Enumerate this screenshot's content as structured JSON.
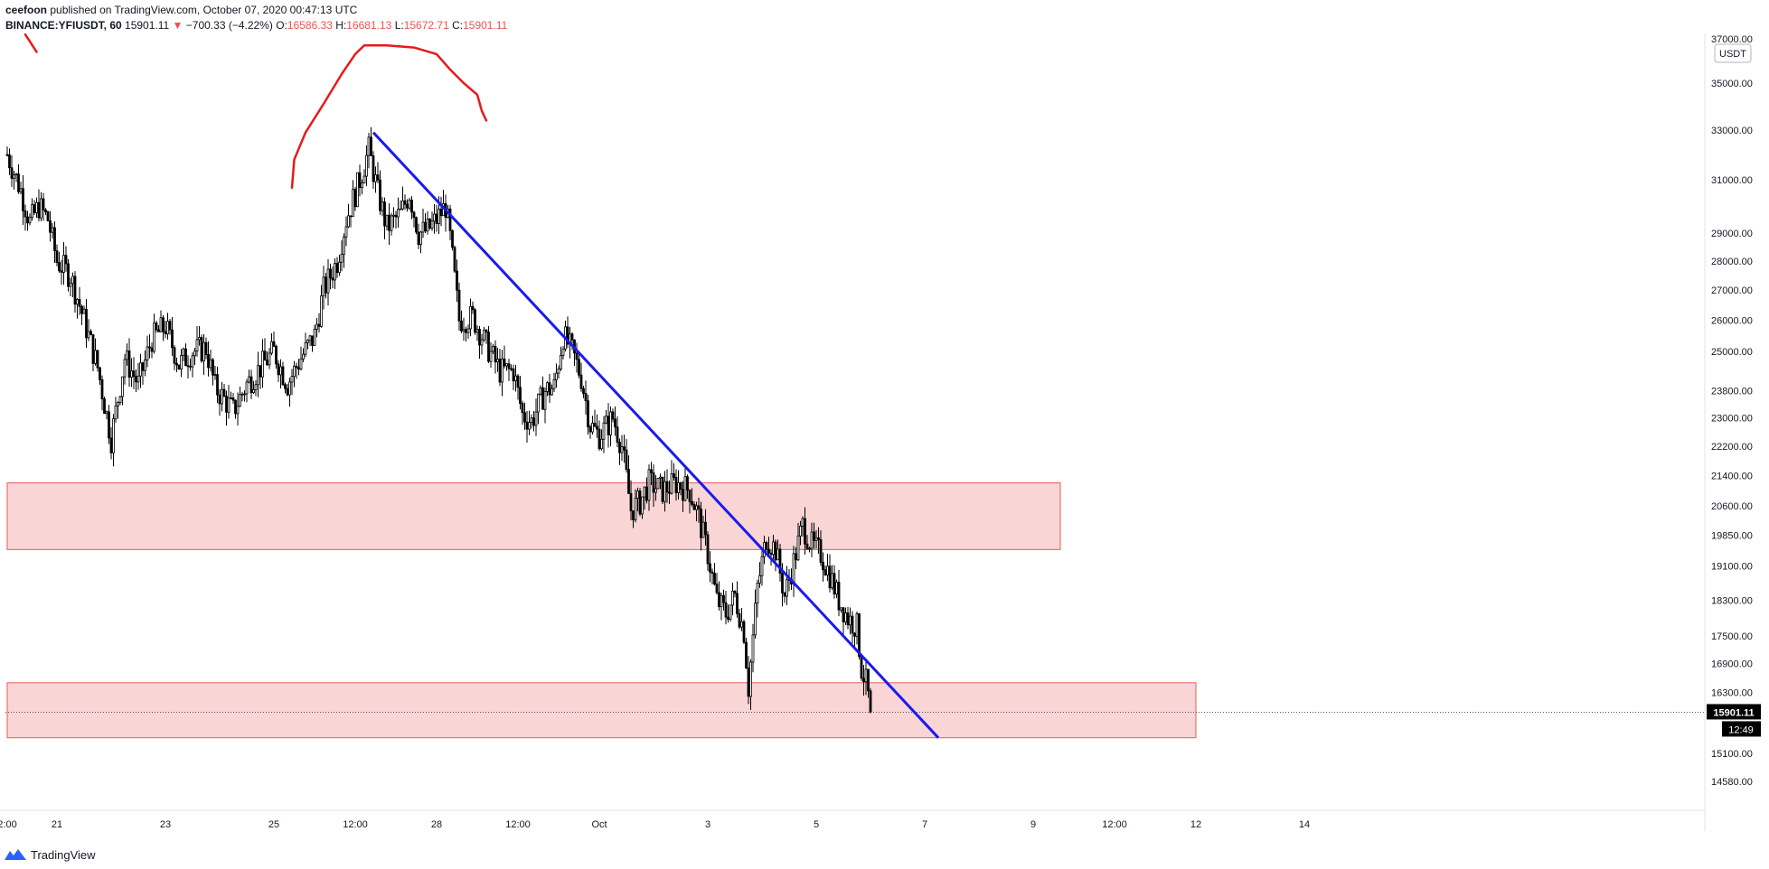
{
  "header": {
    "author": "ceefoon",
    "published_text": "published on TradingView.com, October 07, 2020 00:47:13 UTC",
    "symbol": "BINANCE:YFIUSDT, 60",
    "last": "15901.11",
    "change": "−700.33 (−4.22%)",
    "open_label": "O:",
    "open": "16586.33",
    "high_label": "H:",
    "high": "16681.13",
    "low_label": "L:",
    "low": "15672.71",
    "close_label": "C:",
    "close": "15901.11"
  },
  "footer": {
    "brand": "TradingView"
  },
  "colors": {
    "up": "#ffffff",
    "down": "#000000",
    "trendline": "#1a1aee",
    "drawing": "#e8191a",
    "zone_fill": "#f9d5d5",
    "zone_border": "#e85a5a",
    "accent_red": "#ef5350"
  },
  "chart_data": {
    "type": "candlestick",
    "title": "BINANCE:YFIUSDT, 60",
    "currency": "USDT",
    "ylim": [
      14000,
      37600
    ],
    "y_ticks": [
      14580,
      15100,
      16300,
      16900,
      17500,
      18300,
      19100,
      19850,
      20600,
      21400,
      22200,
      23000,
      23800,
      25000,
      26000,
      27000,
      28000,
      29000,
      31000,
      33000,
      35000,
      37000
    ],
    "y_tick_labels": [
      "14580.00",
      "15100.00",
      "16300.00",
      "16900.00",
      "17500.00",
      "18300.00",
      "19100.00",
      "19850.00",
      "20600.00",
      "21400.00",
      "22200.00",
      "23000.00",
      "23800.00",
      "25000.00",
      "26000.00",
      "27000.00",
      "28000.00",
      "29000.00",
      "31000.00",
      "33000.00",
      "35000.00",
      "37000.00"
    ],
    "x_range_hours": [
      0,
      390
    ],
    "x_ticks": [
      {
        "label": "2:00",
        "hour": 0
      },
      {
        "label": "21",
        "hour": 22
      },
      {
        "label": "23",
        "hour": 70
      },
      {
        "label": "25",
        "hour": 118
      },
      {
        "label": "12:00",
        "hour": 154
      },
      {
        "label": "28",
        "hour": 190
      },
      {
        "label": "12:00",
        "hour": 226
      },
      {
        "label": "Oct",
        "hour": 262
      },
      {
        "label": "3",
        "hour": 310
      },
      {
        "label": "5",
        "hour": 358
      },
      {
        "label": "7",
        "hour": 406
      },
      {
        "label": "9",
        "hour": 454
      },
      {
        "label": "12:00",
        "hour": 490
      },
      {
        "label": "12",
        "hour": 526
      },
      {
        "label": "14",
        "hour": 574
      }
    ],
    "x_hours_total": 600,
    "anchors": [
      [
        0,
        32000
      ],
      [
        6,
        30600
      ],
      [
        10,
        29400
      ],
      [
        14,
        30000
      ],
      [
        18,
        29500
      ],
      [
        22,
        28000
      ],
      [
        28,
        27500
      ],
      [
        34,
        26000
      ],
      [
        40,
        24500
      ],
      [
        46,
        22400
      ],
      [
        52,
        24800
      ],
      [
        58,
        24000
      ],
      [
        64,
        25400
      ],
      [
        70,
        25800
      ],
      [
        76,
        24600
      ],
      [
        82,
        25000
      ],
      [
        88,
        25100
      ],
      [
        92,
        23900
      ],
      [
        100,
        23200
      ],
      [
        106,
        24000
      ],
      [
        112,
        24500
      ],
      [
        118,
        25000
      ],
      [
        124,
        24000
      ],
      [
        130,
        24800
      ],
      [
        136,
        25500
      ],
      [
        140,
        27000
      ],
      [
        146,
        28000
      ],
      [
        150,
        29500
      ],
      [
        156,
        31000
      ],
      [
        160,
        32200
      ],
      [
        164,
        30500
      ],
      [
        168,
        29200
      ],
      [
        174,
        29700
      ],
      [
        178,
        30500
      ],
      [
        182,
        29000
      ],
      [
        186,
        29100
      ],
      [
        190,
        29500
      ],
      [
        194,
        30000
      ],
      [
        196,
        28800
      ],
      [
        200,
        26000
      ],
      [
        206,
        26100
      ],
      [
        212,
        25200
      ],
      [
        218,
        24400
      ],
      [
        224,
        24400
      ],
      [
        228,
        23100
      ],
      [
        232,
        22900
      ],
      [
        238,
        23800
      ],
      [
        242,
        23900
      ],
      [
        246,
        25500
      ],
      [
        250,
        25000
      ],
      [
        254,
        24200
      ],
      [
        258,
        22800
      ],
      [
        262,
        22500
      ],
      [
        268,
        23000
      ],
      [
        272,
        22200
      ],
      [
        276,
        20500
      ],
      [
        280,
        20700
      ],
      [
        284,
        21200
      ],
      [
        290,
        21000
      ],
      [
        296,
        21200
      ],
      [
        302,
        21000
      ],
      [
        306,
        20300
      ],
      [
        310,
        19400
      ],
      [
        314,
        18300
      ],
      [
        318,
        18000
      ],
      [
        322,
        18400
      ],
      [
        326,
        17600
      ],
      [
        328,
        16400
      ],
      [
        332,
        18600
      ],
      [
        336,
        19800
      ],
      [
        340,
        19500
      ],
      [
        344,
        18400
      ],
      [
        348,
        19200
      ],
      [
        352,
        20100
      ],
      [
        356,
        19600
      ],
      [
        360,
        19400
      ],
      [
        364,
        18900
      ],
      [
        368,
        18300
      ],
      [
        372,
        17900
      ],
      [
        376,
        17700
      ],
      [
        378,
        16800
      ],
      [
        380,
        16500
      ],
      [
        382,
        15950
      ]
    ],
    "last_price": 15901.11,
    "last_price_label": "15901.11",
    "countdown_label": "12:49",
    "trendline": {
      "from": {
        "hour": 162,
        "price": 32900
      },
      "to": {
        "hour": 412,
        "price": 15400
      }
    },
    "zones": [
      {
        "hour_from": 0,
        "hour_to": 466,
        "price_low": 19500,
        "price_high": 21200
      },
      {
        "hour_from": 0,
        "hour_to": 526,
        "price_low": 15400,
        "price_high": 16500
      }
    ],
    "freehand_drawings": [
      {
        "points": [
          [
            8,
            37200
          ],
          [
            13,
            36400
          ]
        ]
      },
      {
        "points": [
          [
            126,
            30700
          ],
          [
            127,
            31800
          ],
          [
            132,
            32900
          ],
          [
            140,
            34100
          ],
          [
            148,
            35400
          ],
          [
            154,
            36300
          ],
          [
            158,
            36700
          ],
          [
            168,
            36700
          ],
          [
            180,
            36600
          ],
          [
            190,
            36300
          ],
          [
            196,
            35600
          ],
          [
            202,
            35000
          ],
          [
            208,
            34500
          ],
          [
            210,
            33800
          ],
          [
            212,
            33400
          ]
        ]
      }
    ]
  }
}
